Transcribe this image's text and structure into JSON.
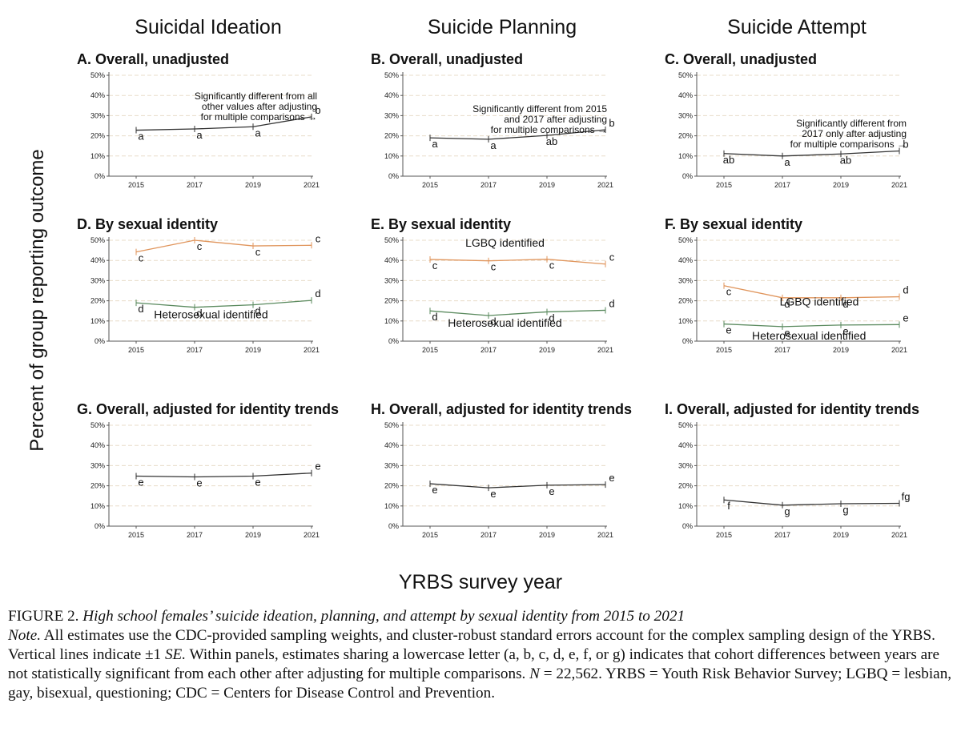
{
  "columns": [
    "Suicidal Ideation",
    "Suicide Planning",
    "Suicide Attempt"
  ],
  "y_axis_label": "Percent of group reporting outcome",
  "x_axis_label": "YRBS survey year",
  "caption": {
    "title_prefix": "FIGURE 2.",
    "title": "High school females’ suicide ideation, planning, and attempt by sexual identity from 2015 to 2021",
    "note_label": "Note.",
    "note_1": "All estimates use the CDC-provided sampling weights, and cluster-robust standard errors account for the complex sampling design of the YRBS. Vertical lines indicate ±1",
    "note_se": "SE.",
    "note_2": "Within panels, estimates sharing a lowercase letter (a, b, c, d, e, f, or g) indicates that cohort differences between years are not statistically significant from each other after adjusting for multiple comparisons.",
    "note_n": "N",
    "note_3": "= 22,562. YRBS = Youth Risk Behavior Survey; LGBQ = lesbian, gay, bisexual, questioning; CDC = Centers for Disease Control and Prevention."
  },
  "colors": {
    "overall": "#333333",
    "lgbq": "#e0955c",
    "hetero": "#5a8a5e",
    "grid": "#e8dcc8",
    "axis": "#555555"
  },
  "chart_data": [
    {
      "id": "A",
      "type": "line",
      "title": "A. Overall, unadjusted",
      "x": [
        2015,
        2017,
        2019,
        2021
      ],
      "ylim": [
        0,
        50
      ],
      "y_ticks": [
        "0%",
        "10%",
        "20%",
        "30%",
        "40%",
        "50%"
      ],
      "series": [
        {
          "color_key": "overall",
          "values": [
            22.8,
            23.4,
            24.5,
            29.4
          ],
          "letters": [
            "a",
            "a",
            "a",
            "b"
          ]
        }
      ],
      "annotation": [
        "Significantly different from all",
        "other values after adjusting",
        "for multiple comparisons →"
      ]
    },
    {
      "id": "B",
      "type": "line",
      "title": "B. Overall, unadjusted",
      "x": [
        2015,
        2017,
        2019,
        2021
      ],
      "ylim": [
        0,
        50
      ],
      "y_ticks": [
        "0%",
        "10%",
        "20%",
        "30%",
        "40%",
        "50%"
      ],
      "series": [
        {
          "color_key": "overall",
          "values": [
            19.0,
            18.3,
            20.2,
            23.0
          ],
          "letters": [
            "a",
            "a",
            "ab",
            "b"
          ]
        }
      ],
      "annotation": [
        "Significantly different from 2015",
        "and 2017 after adjusting",
        "for multiple comparisons →"
      ]
    },
    {
      "id": "C",
      "type": "line",
      "title": "C. Overall, unadjusted",
      "x": [
        2015,
        2017,
        2019,
        2021
      ],
      "ylim": [
        0,
        50
      ],
      "y_ticks": [
        "0%",
        "10%",
        "20%",
        "30%",
        "40%",
        "50%"
      ],
      "series": [
        {
          "color_key": "overall",
          "values": [
            11.2,
            10.0,
            11.0,
            12.5
          ],
          "letters": [
            "ab",
            "a",
            "ab",
            "b"
          ]
        }
      ],
      "annotation": [
        "Significantly different from",
        "2017 only after adjusting",
        "for multiple comparisons →"
      ]
    },
    {
      "id": "D",
      "type": "line",
      "title": "D. By sexual identity",
      "x": [
        2015,
        2017,
        2019,
        2021
      ],
      "ylim": [
        0,
        50
      ],
      "y_ticks": [
        "0%",
        "10%",
        "20%",
        "30%",
        "40%",
        "50%"
      ],
      "series": [
        {
          "name": "LGBQ identified",
          "color_key": "lgbq",
          "values": [
            44.2,
            50.0,
            47.2,
            47.5
          ],
          "letters": [
            "c",
            "c",
            "c",
            "c"
          ]
        },
        {
          "name": "Heterosexual identified",
          "color_key": "hetero",
          "values": [
            19.0,
            16.8,
            18.0,
            20.2
          ],
          "letters": [
            "d",
            "d",
            "d",
            "d"
          ]
        }
      ]
    },
    {
      "id": "E",
      "type": "line",
      "title": "E. By sexual identity",
      "x": [
        2015,
        2017,
        2019,
        2021
      ],
      "ylim": [
        0,
        50
      ],
      "y_ticks": [
        "0%",
        "10%",
        "20%",
        "30%",
        "40%",
        "50%"
      ],
      "series": [
        {
          "name": "LGBQ identified",
          "color_key": "lgbq",
          "values": [
            40.5,
            39.8,
            40.6,
            38.2
          ],
          "letters": [
            "c",
            "c",
            "c",
            "c"
          ]
        },
        {
          "name": "Heterosexual identified",
          "color_key": "hetero",
          "values": [
            15.0,
            12.7,
            14.5,
            15.3
          ],
          "letters": [
            "d",
            "d",
            "d",
            "d"
          ]
        }
      ]
    },
    {
      "id": "F",
      "type": "line",
      "title": "F. By sexual identity",
      "x": [
        2015,
        2017,
        2019,
        2021
      ],
      "ylim": [
        0,
        50
      ],
      "y_ticks": [
        "0%",
        "10%",
        "20%",
        "30%",
        "40%",
        "50%"
      ],
      "series": [
        {
          "name": "LGBQ identified",
          "color_key": "lgbq",
          "values": [
            27.5,
            21.5,
            21.5,
            22.0
          ],
          "letters": [
            "c",
            "d",
            "d",
            "d"
          ]
        },
        {
          "name": "Heterosexual identified",
          "color_key": "hetero",
          "values": [
            8.5,
            7.2,
            8.0,
            8.2
          ],
          "letters": [
            "e",
            "e",
            "e",
            "e"
          ]
        }
      ]
    },
    {
      "id": "G",
      "type": "line",
      "title": "G. Overall, adjusted for identity trends",
      "x": [
        2015,
        2017,
        2019,
        2021
      ],
      "ylim": [
        0,
        50
      ],
      "y_ticks": [
        "0%",
        "10%",
        "20%",
        "30%",
        "40%",
        "50%"
      ],
      "series": [
        {
          "color_key": "overall",
          "values": [
            24.8,
            24.4,
            24.8,
            26.3
          ],
          "letters": [
            "e",
            "e",
            "e",
            "e"
          ]
        }
      ]
    },
    {
      "id": "H",
      "type": "line",
      "title": "H. Overall, adjusted for identity trends",
      "x": [
        2015,
        2017,
        2019,
        2021
      ],
      "ylim": [
        0,
        50
      ],
      "y_ticks": [
        "0%",
        "10%",
        "20%",
        "30%",
        "40%",
        "50%"
      ],
      "series": [
        {
          "color_key": "overall",
          "values": [
            21.0,
            19.0,
            20.3,
            20.6
          ],
          "letters": [
            "e",
            "e",
            "e",
            "e"
          ]
        }
      ]
    },
    {
      "id": "I",
      "type": "line",
      "title": "I. Overall, adjusted for identity trends",
      "x": [
        2015,
        2017,
        2019,
        2021
      ],
      "ylim": [
        0,
        50
      ],
      "y_ticks": [
        "0%",
        "10%",
        "20%",
        "30%",
        "40%",
        "50%"
      ],
      "series": [
        {
          "color_key": "overall",
          "values": [
            13.0,
            10.4,
            11.1,
            11.3
          ],
          "letters": [
            "f",
            "g",
            "g",
            "fg"
          ]
        }
      ]
    }
  ]
}
